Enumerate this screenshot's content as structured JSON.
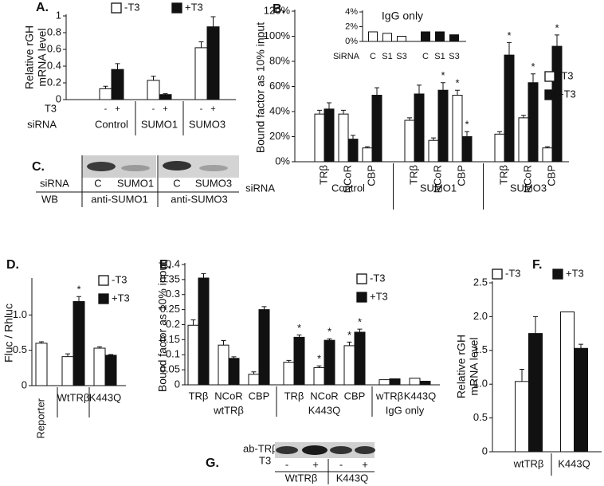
{
  "chart_data": [
    {
      "type": "bar",
      "label": "A.",
      "ylabel": [
        "Relative rGH",
        "mRNA level"
      ],
      "categories": [
        "Control",
        "SUMO1",
        "SUMO3"
      ],
      "series_labels": [
        "-",
        "+"
      ],
      "row_labels": [
        "T3",
        "siRNA"
      ],
      "series": [
        {
          "name": "-T3",
          "color": "#ffffff",
          "values": [
            0.13,
            0.23,
            0.62
          ],
          "errors": [
            0.03,
            0.05,
            0.07
          ]
        },
        {
          "name": "+T3",
          "color": "#111111",
          "values": [
            0.36,
            0.06,
            0.87
          ],
          "errors": [
            0.07,
            0.01,
            0.12
          ]
        }
      ],
      "ylim": [
        0,
        1
      ],
      "yticks": [
        0,
        0.2,
        0.4,
        0.6,
        0.8,
        1
      ],
      "legend": "top"
    },
    {
      "type": "bar",
      "label": "B.",
      "ylabel": "Bound factor as 10% input",
      "groups": [
        {
          "name": "Control",
          "categories": [
            "TRβ",
            "NCoR",
            "CBP"
          ]
        },
        {
          "name": "SUMO1",
          "categories": [
            "TRβ",
            "NCoR",
            "CBP"
          ]
        },
        {
          "name": "SUMO3",
          "categories": [
            "TRβ",
            "NCoR",
            "CBP"
          ]
        }
      ],
      "row_label": "siRNA",
      "series": [
        {
          "name": "-T3",
          "color": "#ffffff",
          "values": [
            38,
            38,
            11,
            33,
            17,
            53,
            22,
            35,
            11
          ],
          "errors": [
            3,
            3,
            1,
            2,
            2,
            4,
            2,
            2,
            1
          ],
          "stars": [
            null,
            null,
            null,
            null,
            null,
            "*",
            null,
            null,
            null
          ]
        },
        {
          "name": "+T3",
          "color": "#111111",
          "values": [
            42,
            18,
            53,
            54,
            57,
            20,
            85,
            63,
            92
          ],
          "errors": [
            5,
            3,
            6,
            7,
            6,
            4,
            10,
            7,
            9
          ],
          "stars": [
            null,
            null,
            null,
            null,
            "*",
            "*",
            "*",
            "*",
            "*"
          ]
        }
      ],
      "ylim": [
        0,
        120
      ],
      "yticks": [
        {
          "value": 0,
          "label": "0%"
        },
        {
          "value": 20,
          "label": "20%"
        },
        {
          "value": 40,
          "label": "40%"
        },
        {
          "value": 60,
          "label": "60%"
        },
        {
          "value": 80,
          "label": "80%"
        },
        {
          "value": 100,
          "label": "100%"
        },
        {
          "value": 120,
          "label": "120%"
        }
      ],
      "legend": "right"
    },
    {
      "type": "bar",
      "title": "IgG only",
      "groups": [
        {
          "categories": [
            "C",
            "S1",
            "S3"
          ]
        },
        {
          "categories": [
            "C",
            "S1",
            "S3"
          ]
        }
      ],
      "row_label": "SiRNA",
      "series": [
        {
          "color": "#ffffff",
          "values": [
            1.3,
            1.1,
            0.7,
            null,
            null,
            null
          ]
        },
        {
          "color": "#111111",
          "values": [
            null,
            null,
            null,
            1.3,
            1.3,
            0.9
          ]
        }
      ],
      "ylim": [
        0,
        4
      ],
      "yticks": [
        {
          "value": 0,
          "label": "0%"
        },
        {
          "value": 2,
          "label": "2%"
        },
        {
          "value": 4,
          "label": "4%"
        }
      ]
    },
    {
      "type": "bar",
      "label": "D.",
      "ylabel": "Fluc / Rhluc",
      "categories": [
        "Reporter",
        "WtTRβ",
        "K443Q"
      ],
      "series": [
        {
          "name": "-T3",
          "color": "#ffffff",
          "values": [
            0.6,
            0.41,
            0.53
          ],
          "errors": [
            0.02,
            0.04,
            0.02
          ]
        },
        {
          "name": "+T3",
          "color": "#111111",
          "values": [
            null,
            1.19,
            0.43
          ],
          "errors": [
            null,
            0.07,
            0.01
          ],
          "stars": [
            null,
            "*",
            null
          ]
        }
      ],
      "ylim": [
        0,
        1.5
      ],
      "yticks": [
        0,
        0.5,
        {
          "value": 1,
          "label": "1.0"
        }
      ],
      "legend": "upper right"
    },
    {
      "type": "bar",
      "label": "E.",
      "ylabel": "Bound factor as 10% input",
      "groups": [
        {
          "name": "wtTRβ",
          "categories": [
            "TRβ",
            "NCoR",
            "CBP"
          ]
        },
        {
          "name": "K443Q",
          "categories": [
            "TRβ",
            "NCoR",
            "CBP"
          ]
        },
        {
          "name": "IgG only",
          "categories": [
            "wTRβ",
            "K443Q"
          ]
        }
      ],
      "series": [
        {
          "name": "-T3",
          "color": "#ffffff",
          "values": [
            0.198,
            0.132,
            0.035,
            0.075,
            0.057,
            0.13,
            0.017,
            0.022
          ],
          "errors": [
            0.018,
            0.015,
            0.008,
            0.006,
            0.006,
            0.012,
            null,
            null
          ],
          "stars": [
            null,
            null,
            null,
            null,
            "*",
            "*",
            null,
            null
          ]
        },
        {
          "name": "+T3",
          "color": "#111111",
          "values": [
            0.355,
            0.088,
            0.25,
            0.158,
            0.148,
            0.175,
            0.02,
            0.012
          ],
          "errors": [
            0.015,
            0.005,
            0.01,
            0.008,
            0.005,
            0.01,
            null,
            null
          ],
          "stars": [
            null,
            null,
            null,
            "*",
            "*",
            "*",
            null,
            null
          ]
        }
      ],
      "ylim": [
        0,
        0.4
      ],
      "yticks": [
        0,
        0.05,
        0.1,
        0.15,
        0.2,
        0.25,
        0.3,
        0.35,
        0.4
      ],
      "legend": "upper right"
    },
    {
      "type": "bar",
      "label": "F.",
      "ylabel": [
        "Relative rGH",
        "mRNA level"
      ],
      "categories": [
        "wtTRβ",
        "K443Q"
      ],
      "series": [
        {
          "name": "-T3",
          "color": "#ffffff",
          "values": [
            1.04,
            2.07
          ],
          "errors": [
            0.18,
            null
          ]
        },
        {
          "name": "+T3",
          "color": "#111111",
          "values": [
            1.75,
            1.53
          ],
          "errors": [
            0.25,
            0.06
          ]
        }
      ],
      "ylim": [
        0,
        2.5
      ],
      "yticks": [
        0,
        0.5,
        {
          "value": 1,
          "label": "1.0"
        },
        1.5,
        {
          "value": 2,
          "label": "2.0"
        },
        2.5
      ],
      "legend": "top"
    }
  ],
  "blot_c": {
    "label": "C.",
    "rows": [
      {
        "name": "siRNA",
        "lanes": [
          "C",
          "SUMO1",
          "C",
          "SUMO3"
        ]
      },
      {
        "name": "WB",
        "lanes": [
          "anti-SUMO1",
          "anti-SUMO3"
        ]
      }
    ]
  },
  "blot_g": {
    "label": "G.",
    "antibody": "ab-TRβ",
    "row_label": "T3",
    "lanes": [
      "-",
      "+",
      "-",
      "+"
    ],
    "groups": [
      "WtTRβ",
      "K443Q"
    ]
  }
}
